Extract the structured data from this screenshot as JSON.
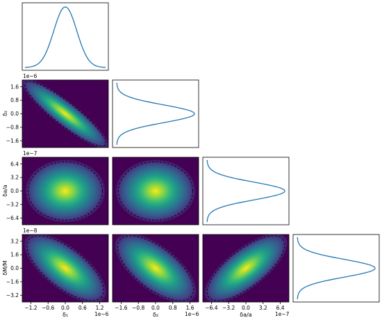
{
  "colors": {
    "line": "#1f77b4",
    "viridis": [
      "#440154",
      "#482878",
      "#3e4989",
      "#31688e",
      "#26828e",
      "#1f9e89",
      "#35b779",
      "#6ece58",
      "#b5de2b",
      "#fde725"
    ],
    "contour": "#000000"
  },
  "chart_data": {
    "type": "corner",
    "parameters": [
      {
        "key": "d1",
        "label": "δ₁",
        "exponent_label": "1e−6",
        "ticks": [
          "−1.2",
          "−0.6",
          "0.0",
          "0.6",
          "1.2"
        ],
        "mean": 0,
        "sigma": 0.6
      },
      {
        "key": "d2",
        "label": "δ₂",
        "exponent_label": "1e−6",
        "ticks": [
          "−1.6",
          "−0.8",
          "0.0",
          "0.8",
          "1.6"
        ],
        "mean": 0,
        "sigma": 0.8
      },
      {
        "key": "da",
        "label": "δa/a",
        "exponent_label": "1e−7",
        "ticks": [
          "−6.4",
          "−3.2",
          "0.0",
          "3.2",
          "6.4"
        ],
        "mean": 0,
        "sigma": 3.2
      },
      {
        "key": "dM",
        "label": "δM/M",
        "exponent_label": "1e−8",
        "ticks": [
          "−3.2",
          "−1.6",
          "0.0",
          "1.6",
          "3.2"
        ],
        "mean": 0,
        "sigma": 1.6
      }
    ],
    "correlations": {
      "d2_d1": -0.85,
      "da_d1": 0.0,
      "da_d2": 0.0,
      "dM_d1": -0.55,
      "dM_d2": -0.5,
      "dM_da": 0.6
    },
    "marginals": "1D Gaussian on diagonal panels; joint 2D Gaussian density (viridis) with dashed confidence contour off-diagonal",
    "grid": false
  },
  "labels": {
    "offset_row1": "1e−6",
    "offset_row2": "1e−7",
    "offset_row3": "1e−8",
    "offset_x1": "1e−6",
    "offset_x2": "1e−6",
    "offset_x3": "1e−7",
    "ylabel_row1": "δ₂",
    "ylabel_row2": "δa/a",
    "ylabel_row3": "δM/M",
    "xlabel_col0": "δ₁",
    "xlabel_col1": "δ₂",
    "xlabel_col2": "δa/a"
  }
}
